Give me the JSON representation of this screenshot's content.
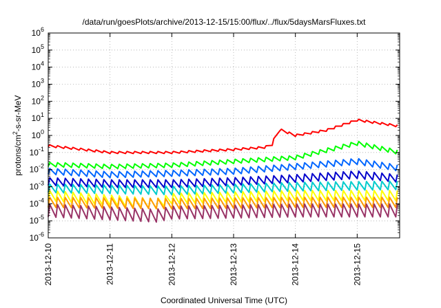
{
  "chart_data": {
    "type": "line",
    "title": "/data/run/goesPlots/archive/2013-12-15/15:00/flux/../flux/5daysMarsFluxes.txt",
    "xlabel": "Coordinated Universal Time (UTC)",
    "ylabel": "protons/cm²-s-sr-MeV",
    "yscale": "log",
    "ylim": [
      1e-06,
      1000000.0
    ],
    "xlim": [
      "2013-12-10T00:00",
      "2013-12-15T16:30"
    ],
    "x_ticks": [
      "2013-12-10",
      "2013-12-11",
      "2013-12-12",
      "2013-12-13",
      "2013-12-14",
      "2013-12-15"
    ],
    "y_ticks": [
      {
        "mantissa": "10",
        "exp": "-6",
        "value": 1e-06
      },
      {
        "mantissa": "10",
        "exp": "-5",
        "value": 1e-05
      },
      {
        "mantissa": "10",
        "exp": "-4",
        "value": 0.0001
      },
      {
        "mantissa": "10",
        "exp": "-3",
        "value": 0.001
      },
      {
        "mantissa": "10",
        "exp": "-2",
        "value": 0.01
      },
      {
        "mantissa": "10",
        "exp": "-1",
        "value": 0.1
      },
      {
        "mantissa": "10",
        "exp": "0",
        "value": 1
      },
      {
        "mantissa": "10",
        "exp": "1",
        "value": 10
      },
      {
        "mantissa": "10",
        "exp": "2",
        "value": 100
      },
      {
        "mantissa": "10",
        "exp": "3",
        "value": 1000
      },
      {
        "mantissa": "10",
        "exp": "4",
        "value": 10000
      },
      {
        "mantissa": "10",
        "exp": "5",
        "value": 100000
      },
      {
        "mantissa": "10",
        "exp": "6",
        "value": 1000000
      }
    ],
    "grid": true,
    "legend": "none",
    "series": [
      {
        "color": "#ff0000",
        "width": 2,
        "sawtooth": 0.12,
        "points": [
          [
            "2013-12-10T00:00",
            0.25
          ],
          [
            "2013-12-11T00:00",
            0.1
          ],
          [
            "2013-12-12T00:00",
            0.1
          ],
          [
            "2013-12-13T00:00",
            0.15
          ],
          [
            "2013-12-13T12:00",
            0.2
          ],
          [
            "2013-12-13T15:00",
            0.3
          ],
          [
            "2013-12-13T17:00",
            2.5
          ],
          [
            "2013-12-14T00:00",
            1.0
          ],
          [
            "2013-12-14T12:00",
            2.0
          ],
          [
            "2013-12-15T00:00",
            8.0
          ],
          [
            "2013-12-15T16:30",
            3.5
          ]
        ]
      },
      {
        "color": "#00ff00",
        "width": 2,
        "sawtooth": 0.25,
        "points": [
          [
            "2013-12-10T00:00",
            0.02
          ],
          [
            "2013-12-11T00:00",
            0.015
          ],
          [
            "2013-12-12T00:00",
            0.018
          ],
          [
            "2013-12-13T00:00",
            0.03
          ],
          [
            "2013-12-14T00:00",
            0.05
          ],
          [
            "2013-12-15T00:00",
            0.35
          ],
          [
            "2013-12-15T16:30",
            0.1
          ]
        ]
      },
      {
        "color": "#0066ff",
        "width": 2,
        "sawtooth": 0.35,
        "points": [
          [
            "2013-12-10T00:00",
            0.008
          ],
          [
            "2013-12-11T00:00",
            0.005
          ],
          [
            "2013-12-12T00:00",
            0.006
          ],
          [
            "2013-12-13T00:00",
            0.008
          ],
          [
            "2013-12-14T00:00",
            0.015
          ],
          [
            "2013-12-15T00:00",
            0.03
          ],
          [
            "2013-12-15T16:30",
            0.012
          ]
        ]
      },
      {
        "color": "#0000cc",
        "width": 2,
        "sawtooth": 0.45,
        "points": [
          [
            "2013-12-10T00:00",
            0.002
          ],
          [
            "2013-12-11T00:00",
            0.0015
          ],
          [
            "2013-12-12T00:00",
            0.0015
          ],
          [
            "2013-12-13T00:00",
            0.002
          ],
          [
            "2013-12-14T00:00",
            0.003
          ],
          [
            "2013-12-15T00:00",
            0.005
          ],
          [
            "2013-12-15T16:30",
            0.003
          ]
        ]
      },
      {
        "color": "#00cccc",
        "width": 2,
        "sawtooth": 0.5,
        "points": [
          [
            "2013-12-10T00:00",
            0.0008
          ],
          [
            "2013-12-12T00:00",
            0.0006
          ],
          [
            "2013-12-14T00:00",
            0.001
          ],
          [
            "2013-12-15T16:30",
            0.0012
          ]
        ]
      },
      {
        "color": "#ffff00",
        "width": 2,
        "sawtooth": 0.6,
        "points": [
          [
            "2013-12-10T00:00",
            0.0003
          ],
          [
            "2013-12-11T18:00",
            0.0001
          ],
          [
            "2013-12-12T00:00",
            0.0002
          ],
          [
            "2013-12-14T00:00",
            0.0003
          ],
          [
            "2013-12-15T16:30",
            0.0003
          ]
        ]
      },
      {
        "color": "#ff9900",
        "width": 2,
        "sawtooth": 0.6,
        "points": [
          [
            "2013-12-10T00:00",
            0.00012
          ],
          [
            "2013-12-12T00:00",
            0.0001
          ],
          [
            "2013-12-14T00:00",
            0.00012
          ],
          [
            "2013-12-15T16:30",
            0.00012
          ]
        ]
      },
      {
        "color": "#993366",
        "width": 2,
        "sawtooth": 0.75,
        "points": [
          [
            "2013-12-10T00:00",
            4e-05
          ],
          [
            "2013-12-11T18:00",
            2e-05
          ],
          [
            "2013-12-12T00:00",
            3e-05
          ],
          [
            "2013-12-14T00:00",
            4e-05
          ],
          [
            "2013-12-15T16:30",
            4e-05
          ]
        ]
      }
    ]
  }
}
